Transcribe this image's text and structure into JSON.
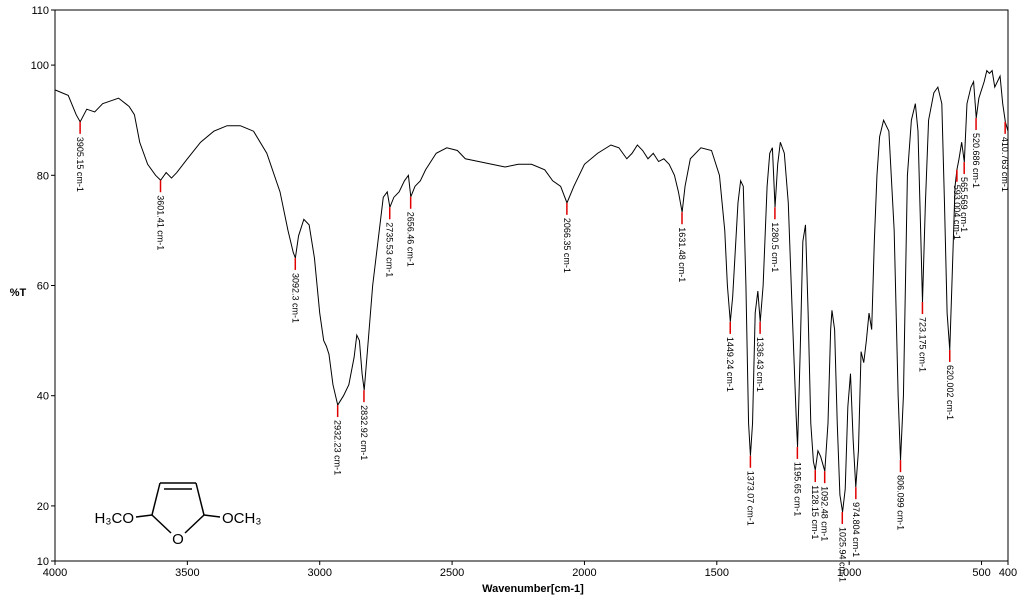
{
  "chart_data": {
    "type": "line",
    "xlabel": "Wavenumber[cm-1]",
    "ylabel": "%T",
    "xlim": [
      4000,
      400
    ],
    "ylim": [
      10,
      110
    ],
    "xticks": [
      4000,
      3500,
      3000,
      2500,
      2000,
      1500,
      1000,
      500,
      400
    ],
    "yticks": [
      10,
      20,
      40,
      60,
      80,
      100,
      110
    ],
    "color": "#000000",
    "x": [
      4000,
      3950,
      3920,
      3905,
      3880,
      3850,
      3820,
      3790,
      3760,
      3720,
      3700,
      3680,
      3650,
      3620,
      3601,
      3580,
      3560,
      3540,
      3500,
      3450,
      3400,
      3350,
      3300,
      3250,
      3200,
      3150,
      3120,
      3100,
      3092,
      3080,
      3060,
      3040,
      3020,
      3000,
      2985,
      2975,
      2965,
      2950,
      2932,
      2910,
      2890,
      2870,
      2860,
      2850,
      2840,
      2832,
      2820,
      2800,
      2780,
      2760,
      2745,
      2735,
      2720,
      2700,
      2680,
      2665,
      2656,
      2640,
      2620,
      2600,
      2560,
      2520,
      2480,
      2450,
      2400,
      2350,
      2300,
      2250,
      2200,
      2150,
      2120,
      2090,
      2066,
      2040,
      2000,
      1950,
      1900,
      1870,
      1840,
      1820,
      1800,
      1780,
      1760,
      1740,
      1720,
      1700,
      1680,
      1660,
      1645,
      1631,
      1620,
      1600,
      1560,
      1520,
      1490,
      1470,
      1460,
      1449,
      1440,
      1420,
      1410,
      1400,
      1390,
      1380,
      1373,
      1365,
      1355,
      1345,
      1336,
      1325,
      1310,
      1300,
      1290,
      1280,
      1270,
      1260,
      1245,
      1230,
      1215,
      1200,
      1195,
      1185,
      1175,
      1165,
      1155,
      1145,
      1135,
      1128,
      1118,
      1108,
      1092,
      1080,
      1070,
      1065,
      1055,
      1045,
      1035,
      1025,
      1015,
      1005,
      995,
      985,
      975,
      965,
      955,
      945,
      935,
      925,
      915,
      905,
      895,
      885,
      870,
      850,
      830,
      815,
      806,
      795,
      780,
      765,
      750,
      740,
      730,
      723,
      712,
      700,
      680,
      665,
      650,
      640,
      630,
      620,
      612,
      600,
      593,
      585,
      575,
      565,
      555,
      540,
      530,
      520,
      510,
      490,
      480,
      470,
      460,
      450,
      440,
      430,
      420,
      410,
      400
    ],
    "values": [
      95.5,
      94.5,
      91,
      89.7,
      92,
      91.5,
      93,
      93.5,
      94,
      92.5,
      91,
      86,
      82,
      80,
      79.1,
      80.5,
      79.5,
      80.5,
      83,
      86,
      88,
      89,
      89,
      88,
      84,
      77,
      70,
      66,
      65,
      69,
      72,
      71,
      65,
      55,
      50,
      49,
      47.5,
      42,
      38.3,
      40,
      42,
      47,
      51,
      50,
      44,
      41,
      48,
      60,
      68,
      76,
      77,
      74.2,
      76,
      77,
      79,
      80,
      76.1,
      78,
      79,
      81,
      84,
      85,
      84.5,
      83,
      82.5,
      82,
      81.5,
      82,
      82,
      81,
      79,
      78,
      75,
      78,
      82,
      84,
      85.5,
      85,
      83,
      84,
      85.5,
      84.5,
      83,
      84,
      82.5,
      83,
      82,
      80,
      77,
      73.3,
      78,
      83,
      85,
      84.5,
      80,
      70,
      60,
      53.4,
      58,
      75,
      79,
      78,
      60,
      35,
      29.1,
      35,
      55,
      59,
      53.4,
      60,
      78,
      84,
      85,
      74.2,
      82,
      86,
      84,
      75,
      55,
      36,
      30.7,
      48,
      68,
      71,
      55,
      35,
      28,
      26.5,
      30,
      29,
      26.3,
      35,
      52,
      55.5,
      52,
      35,
      22,
      18.9,
      23,
      38,
      44,
      32,
      23.4,
      30,
      48,
      46,
      50,
      55,
      52,
      68,
      80,
      87,
      90,
      88,
      70,
      40,
      28.3,
      40,
      80,
      90,
      93,
      88,
      70,
      57,
      75,
      90,
      95,
      96,
      93,
      75,
      55,
      48.3,
      60,
      78,
      81,
      83,
      86,
      82.4,
      93,
      96,
      97,
      90.4,
      94,
      97,
      99,
      98.5,
      99,
      96,
      97,
      98,
      93,
      89.7,
      88
    ],
    "peaks": [
      {
        "x": 3905.15,
        "y": 89.7,
        "label": "3905.15 cm-1"
      },
      {
        "x": 3601.41,
        "y": 79.1,
        "label": "3601.41 cm-1"
      },
      {
        "x": 3092.3,
        "y": 65.0,
        "label": "3092.3 cm-1"
      },
      {
        "x": 2932.23,
        "y": 38.3,
        "label": "2932.23 cm-1"
      },
      {
        "x": 2832.92,
        "y": 41.0,
        "label": "2832.92 cm-1"
      },
      {
        "x": 2735.53,
        "y": 74.2,
        "label": "2735.53 cm-1"
      },
      {
        "x": 2656.46,
        "y": 76.1,
        "label": "2656.46 cm-1"
      },
      {
        "x": 2066.35,
        "y": 75.0,
        "label": "2066.35 cm-1"
      },
      {
        "x": 1631.48,
        "y": 73.3,
        "label": "1631.48 cm-1"
      },
      {
        "x": 1449.24,
        "y": 53.4,
        "label": "1449.24 cm-1"
      },
      {
        "x": 1373.07,
        "y": 29.1,
        "label": "1373.07 cm-1"
      },
      {
        "x": 1336.43,
        "y": 53.4,
        "label": "1336.43 cm-1"
      },
      {
        "x": 1280.5,
        "y": 74.2,
        "label": "1280.5 cm-1"
      },
      {
        "x": 1195.65,
        "y": 30.7,
        "label": "1195.65 cm-1"
      },
      {
        "x": 1128.15,
        "y": 26.5,
        "label": "1128.15 cm-1"
      },
      {
        "x": 1092.48,
        "y": 26.3,
        "label": "1092.48 cm-1"
      },
      {
        "x": 1025.94,
        "y": 18.9,
        "label": "1025.94 cm-1"
      },
      {
        "x": 974.804,
        "y": 23.4,
        "label": "974.804 cm-1"
      },
      {
        "x": 806.099,
        "y": 28.3,
        "label": "806.099 cm-1"
      },
      {
        "x": 723.175,
        "y": 57.0,
        "label": "723.175 cm-1"
      },
      {
        "x": 620.002,
        "y": 48.3,
        "label": "620.002 cm-1"
      },
      {
        "x": 593.004,
        "y": 81.0,
        "label": "593.004 cm-1"
      },
      {
        "x": 565.569,
        "y": 82.4,
        "label": "565.569 cm-1"
      },
      {
        "x": 520.686,
        "y": 90.4,
        "label": "520.686 cm-1"
      },
      {
        "x": 410.763,
        "y": 89.7,
        "label": "410.763 cm-1"
      }
    ]
  },
  "structure": {
    "left_group": "H₃CO",
    "right_group": "OCH₃",
    "ring_atom": "O"
  }
}
